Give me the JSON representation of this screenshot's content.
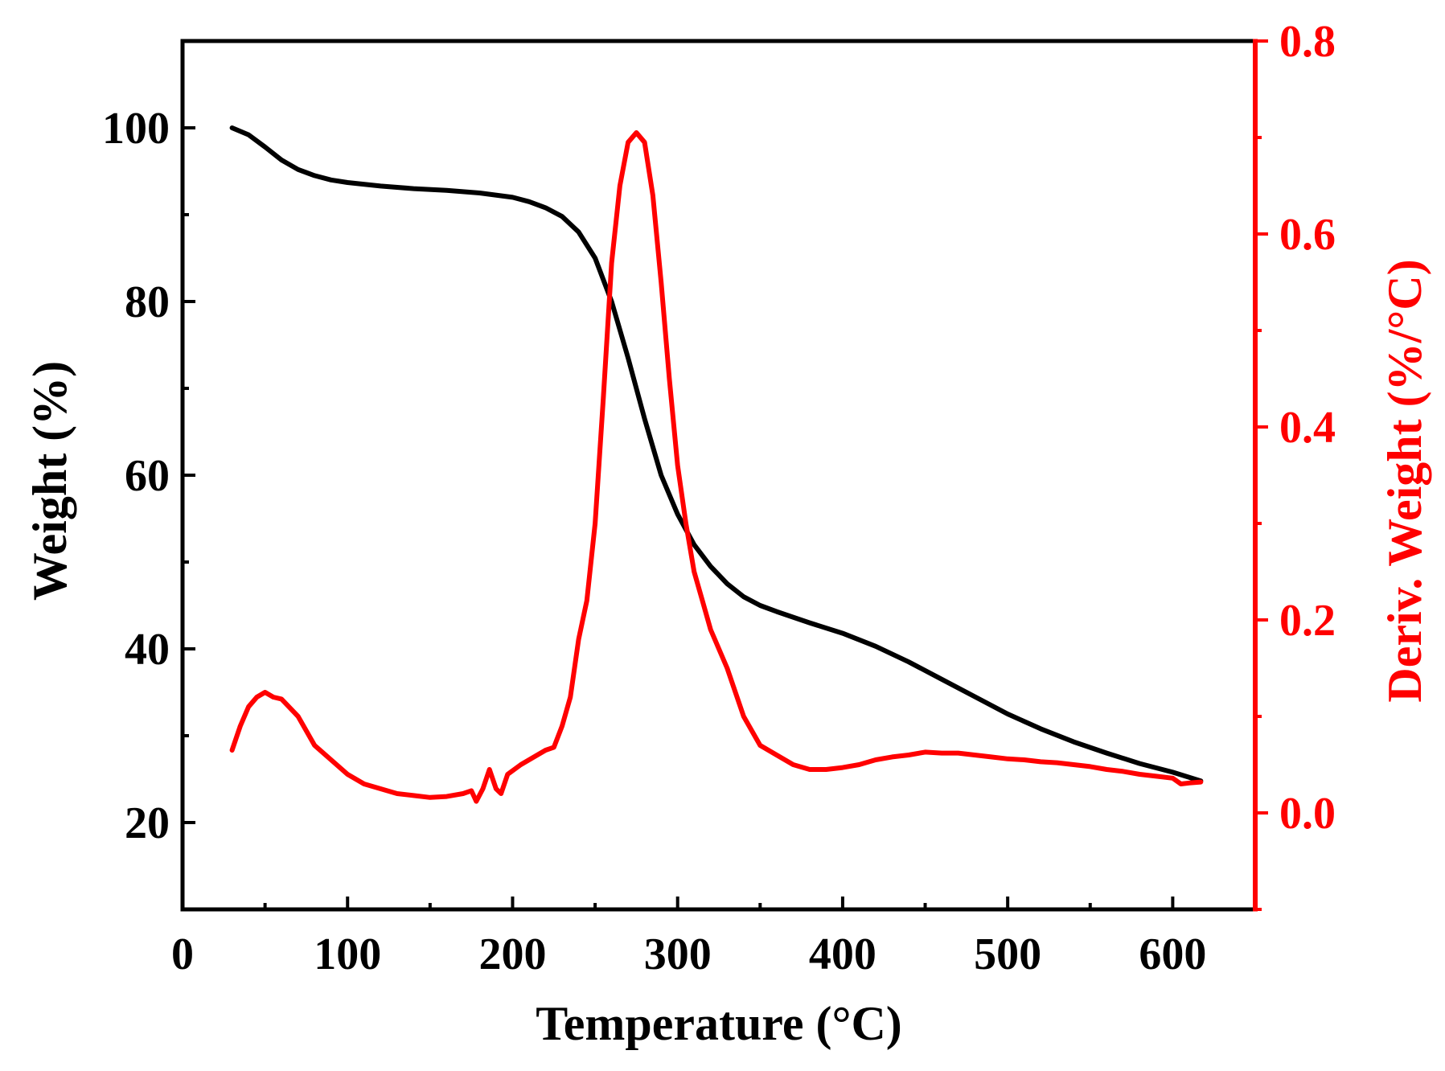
{
  "chart_data": {
    "type": "line",
    "title": "",
    "xlabel": "Temperature (°C)",
    "ylabel_left": "Weight (%)",
    "ylabel_right": "Deriv. Weight (%/°C)",
    "xlim": [
      0,
      650
    ],
    "ylim_left": [
      10,
      110
    ],
    "ylim_right": [
      -0.1,
      0.8
    ],
    "x_ticks": [
      0,
      100,
      200,
      300,
      400,
      500,
      600
    ],
    "x_tick_labels": [
      "0",
      "100",
      "200",
      "300",
      "400",
      "500",
      "600"
    ],
    "left_ticks": [
      20,
      40,
      60,
      80,
      100
    ],
    "left_tick_labels": [
      "20",
      "40",
      "60",
      "80",
      "100"
    ],
    "right_ticks": [
      0.0,
      0.2,
      0.4,
      0.6,
      0.8
    ],
    "right_tick_labels": [
      "0.0",
      "0.2",
      "0.4",
      "0.6",
      "0.8"
    ],
    "grid": false,
    "colors": {
      "weight": "#000000",
      "deriv": "#ff0000",
      "axis_left": "#000000",
      "axis_right": "#ff0000"
    },
    "series": [
      {
        "name": "Weight",
        "axis": "left",
        "color": "#000000",
        "x": [
          30,
          40,
          50,
          60,
          70,
          80,
          90,
          100,
          120,
          140,
          160,
          180,
          200,
          210,
          220,
          230,
          240,
          250,
          260,
          270,
          280,
          290,
          300,
          310,
          320,
          330,
          340,
          350,
          360,
          380,
          400,
          420,
          440,
          460,
          480,
          500,
          520,
          540,
          560,
          580,
          600,
          617
        ],
        "values": [
          100,
          99.2,
          97.8,
          96.3,
          95.2,
          94.5,
          94.0,
          93.7,
          93.3,
          93.0,
          92.8,
          92.5,
          92.0,
          91.5,
          90.8,
          89.8,
          88.0,
          85.0,
          80.0,
          73.5,
          66.5,
          60.0,
          55.5,
          52.0,
          49.5,
          47.5,
          46.0,
          45.0,
          44.3,
          43.0,
          41.8,
          40.3,
          38.5,
          36.5,
          34.5,
          32.5,
          30.8,
          29.3,
          28.0,
          26.8,
          25.8,
          24.8
        ]
      },
      {
        "name": "Deriv. Weight",
        "axis": "right",
        "color": "#ff0000",
        "x": [
          30,
          35,
          40,
          45,
          50,
          55,
          60,
          70,
          80,
          90,
          100,
          110,
          120,
          130,
          140,
          150,
          160,
          170,
          175,
          178,
          182,
          186,
          190,
          193,
          197,
          205,
          215,
          220,
          225,
          230,
          235,
          240,
          245,
          250,
          255,
          260,
          265,
          270,
          275,
          280,
          285,
          290,
          295,
          300,
          305,
          310,
          315,
          320,
          330,
          340,
          350,
          360,
          370,
          380,
          390,
          400,
          410,
          420,
          430,
          440,
          450,
          460,
          470,
          480,
          490,
          500,
          510,
          520,
          530,
          540,
          550,
          560,
          570,
          580,
          590,
          600,
          605,
          610,
          617
        ],
        "values": [
          0.065,
          0.09,
          0.11,
          0.12,
          0.125,
          0.12,
          0.118,
          0.1,
          0.07,
          0.055,
          0.04,
          0.03,
          0.025,
          0.02,
          0.018,
          0.016,
          0.017,
          0.02,
          0.023,
          0.012,
          0.025,
          0.045,
          0.025,
          0.02,
          0.04,
          0.05,
          0.06,
          0.065,
          0.068,
          0.09,
          0.12,
          0.18,
          0.22,
          0.3,
          0.43,
          0.57,
          0.65,
          0.695,
          0.705,
          0.695,
          0.64,
          0.55,
          0.45,
          0.36,
          0.3,
          0.25,
          0.22,
          0.19,
          0.15,
          0.1,
          0.07,
          0.06,
          0.05,
          0.045,
          0.045,
          0.047,
          0.05,
          0.055,
          0.058,
          0.06,
          0.063,
          0.062,
          0.062,
          0.06,
          0.058,
          0.056,
          0.055,
          0.053,
          0.052,
          0.05,
          0.048,
          0.045,
          0.043,
          0.04,
          0.038,
          0.036,
          0.03,
          0.031,
          0.032
        ]
      }
    ]
  }
}
